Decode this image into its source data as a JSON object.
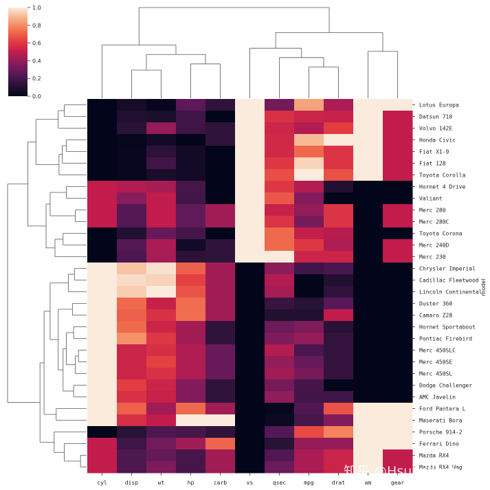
{
  "chart_data": {
    "type": "heatmap",
    "title": "",
    "colormap": "rocket",
    "colorbar": {
      "min": 0.0,
      "max": 1.0,
      "ticks": [
        "0.0",
        "0.2",
        "0.4",
        "0.6",
        "0.8",
        "1.0"
      ]
    },
    "xlabel": "",
    "ylabel": "model",
    "columns": [
      "cyl",
      "disp",
      "wt",
      "hp",
      "carb",
      "vs",
      "qsec",
      "mpg",
      "drat",
      "am",
      "gear"
    ],
    "rows": [
      "Lotus Europa",
      "Datsun 710",
      "Volvo 142E",
      "Honda Civic",
      "Fiat X1-9",
      "Fiat 128",
      "Toyota Corolla",
      "Hornet 4 Drive",
      "Valiant",
      "Merc 280",
      "Merc 280C",
      "Toyota Corona",
      "Merc 240D",
      "Merc 230",
      "Chrysler Imperial",
      "Cadillac Fleetwood",
      "Lincoln Continental",
      "Duster 360",
      "Camaro Z28",
      "Hornet Sportabout",
      "Pontiac Firebird",
      "Merc 450SLC",
      "Merc 450SE",
      "Merc 450SL",
      "Dodge Challenger",
      "AMC Javelin",
      "Ford Pantera L",
      "Maserati Bora",
      "Porsche 914-2",
      "Ferrari Dino",
      "Mazda RX4",
      "Mazda RX4 Wag"
    ],
    "values": [
      [
        0.0,
        0.06,
        0.02,
        0.26,
        0.14,
        1.0,
        0.32,
        0.85,
        0.45,
        1.0,
        1.0
      ],
      [
        0.0,
        0.1,
        0.08,
        0.18,
        0.0,
        1.0,
        0.58,
        0.53,
        0.52,
        1.0,
        0.5
      ],
      [
        0.0,
        0.12,
        0.4,
        0.18,
        0.14,
        1.0,
        0.54,
        0.47,
        0.62,
        1.0,
        0.5
      ],
      [
        0.0,
        0.01,
        0.05,
        0.0,
        0.14,
        1.0,
        0.55,
        0.9,
        1.0,
        1.0,
        0.5
      ],
      [
        0.0,
        0.02,
        0.13,
        0.05,
        0.0,
        1.0,
        0.55,
        0.72,
        0.59,
        1.0,
        0.5
      ],
      [
        0.0,
        0.02,
        0.19,
        0.05,
        0.0,
        1.0,
        0.6,
        0.95,
        0.59,
        1.0,
        0.5
      ],
      [
        0.0,
        0.01,
        0.07,
        0.05,
        0.0,
        1.0,
        0.66,
        1.0,
        0.67,
        1.0,
        0.5
      ],
      [
        0.5,
        0.47,
        0.44,
        0.2,
        0.0,
        1.0,
        0.6,
        0.47,
        0.1,
        0.0,
        0.0
      ],
      [
        0.5,
        0.38,
        0.5,
        0.19,
        0.0,
        1.0,
        0.68,
        0.36,
        0.0,
        0.0,
        0.0
      ],
      [
        0.5,
        0.24,
        0.5,
        0.27,
        0.43,
        1.0,
        0.52,
        0.4,
        0.59,
        0.0,
        0.5
      ],
      [
        0.5,
        0.24,
        0.5,
        0.27,
        0.43,
        1.0,
        0.59,
        0.33,
        0.59,
        0.0,
        0.5
      ],
      [
        0.0,
        0.1,
        0.29,
        0.2,
        0.0,
        1.0,
        0.72,
        0.51,
        0.48,
        0.0,
        0.0
      ],
      [
        0.0,
        0.24,
        0.45,
        0.05,
        0.14,
        1.0,
        0.72,
        0.6,
        0.46,
        0.0,
        0.5
      ],
      [
        0.0,
        0.22,
        0.44,
        0.13,
        0.14,
        1.0,
        1.0,
        0.53,
        0.53,
        0.0,
        0.5
      ],
      [
        1.0,
        0.92,
        0.98,
        0.7,
        0.43,
        0.0,
        0.38,
        0.18,
        0.21,
        0.0,
        0.0
      ],
      [
        1.0,
        0.97,
        0.95,
        0.63,
        0.43,
        0.0,
        0.47,
        0.0,
        0.1,
        0.0,
        0.0
      ],
      [
        1.0,
        0.94,
        1.0,
        0.67,
        0.43,
        0.0,
        0.44,
        0.0,
        0.14,
        0.0,
        0.0
      ],
      [
        1.0,
        0.72,
        0.52,
        0.73,
        0.43,
        0.0,
        0.16,
        0.12,
        0.25,
        0.0,
        0.0
      ],
      [
        1.0,
        0.7,
        0.58,
        0.73,
        0.43,
        0.0,
        0.1,
        0.1,
        0.5,
        0.0,
        0.0
      ],
      [
        1.0,
        0.72,
        0.53,
        0.43,
        0.14,
        0.0,
        0.3,
        0.35,
        0.12,
        0.0,
        0.0
      ],
      [
        1.0,
        0.81,
        0.6,
        0.43,
        0.14,
        0.0,
        0.35,
        0.4,
        0.15,
        0.0,
        0.0
      ],
      [
        1.0,
        0.53,
        0.57,
        0.46,
        0.29,
        0.0,
        0.47,
        0.21,
        0.15,
        0.0,
        0.0
      ],
      [
        1.0,
        0.53,
        0.63,
        0.46,
        0.29,
        0.0,
        0.4,
        0.29,
        0.15,
        0.0,
        0.0
      ],
      [
        1.0,
        0.53,
        0.58,
        0.46,
        0.29,
        0.0,
        0.43,
        0.33,
        0.15,
        0.0,
        0.0
      ],
      [
        1.0,
        0.62,
        0.53,
        0.36,
        0.14,
        0.0,
        0.33,
        0.2,
        0.0,
        0.0,
        0.0
      ],
      [
        1.0,
        0.58,
        0.52,
        0.36,
        0.14,
        0.0,
        0.39,
        0.19,
        0.18,
        0.0,
        0.0
      ],
      [
        1.0,
        0.7,
        0.43,
        0.72,
        0.43,
        0.0,
        0.02,
        0.23,
        0.67,
        1.0,
        1.0
      ],
      [
        1.0,
        0.57,
        0.5,
        1.0,
        1.0,
        0.0,
        0.03,
        0.2,
        0.36,
        1.0,
        1.0
      ],
      [
        0.0,
        0.12,
        0.22,
        0.2,
        0.14,
        0.0,
        0.24,
        0.65,
        0.78,
        1.0,
        1.0
      ],
      [
        0.5,
        0.18,
        0.32,
        0.43,
        0.71,
        0.0,
        0.12,
        0.4,
        0.4,
        1.0,
        1.0
      ],
      [
        0.5,
        0.22,
        0.28,
        0.2,
        0.43,
        0.0,
        0.23,
        0.45,
        0.53,
        1.0,
        0.5
      ],
      [
        0.5,
        0.22,
        0.35,
        0.2,
        0.43,
        0.0,
        0.3,
        0.45,
        0.53,
        1.0,
        0.5
      ]
    ],
    "row_dendrogram": [
      {
        "l": 0,
        "r": 1,
        "h": 0.55
      },
      {
        "l": "c0",
        "r": 2,
        "h": 0.7
      },
      {
        "l": 3,
        "r": 4,
        "h": 0.5
      },
      {
        "l": "c2",
        "r": 5,
        "h": 0.6
      },
      {
        "l": "c3",
        "r": 6,
        "h": 0.68
      },
      {
        "l": "c1",
        "r": "c4",
        "h": 1.25
      },
      {
        "l": 7,
        "r": 8,
        "h": 0.5
      },
      {
        "l": 9,
        "r": 10,
        "h": 0.28
      },
      {
        "l": "c6",
        "r": "c7",
        "h": 0.9
      },
      {
        "l": 11,
        "r": 12,
        "h": 0.58
      },
      {
        "l": "c9",
        "r": 13,
        "h": 0.78
      },
      {
        "l": "c8",
        "r": "c10",
        "h": 1.0
      },
      {
        "l": "c5",
        "r": "c11",
        "h": 1.45
      },
      {
        "l": 14,
        "r": 15,
        "h": 0.3
      },
      {
        "l": "c13",
        "r": 16,
        "h": 0.45
      },
      {
        "l": 17,
        "r": 18,
        "h": 0.35
      },
      {
        "l": 19,
        "r": 20,
        "h": 0.32
      },
      {
        "l": 21,
        "r": 22,
        "h": 0.2
      },
      {
        "l": "c17",
        "r": 23,
        "h": 0.28
      },
      {
        "l": "c16",
        "r": "c18",
        "h": 0.5
      },
      {
        "l": 24,
        "r": 25,
        "h": 0.32
      },
      {
        "l": "c19",
        "r": "c20",
        "h": 0.58
      },
      {
        "l": "c15",
        "r": "c21",
        "h": 0.7
      },
      {
        "l": "c14",
        "r": "c22",
        "h": 0.9
      },
      {
        "l": 26,
        "r": 27,
        "h": 0.75
      },
      {
        "l": "c23",
        "r": "c24",
        "h": 1.05
      },
      {
        "l": 30,
        "r": 31,
        "h": 0.15
      },
      {
        "l": 29,
        "r": "c26",
        "h": 0.55
      },
      {
        "l": 28,
        "r": "c27",
        "h": 0.8
      },
      {
        "l": "c25",
        "r": "c28",
        "h": 1.15
      },
      {
        "l": "c12",
        "r": "c29",
        "h": 1.95
      }
    ],
    "col_dendrogram": [
      {
        "l": 1,
        "r": 2,
        "h": 0.45
      },
      {
        "l": 3,
        "r": 4,
        "h": 0.55
      },
      {
        "l": "c0",
        "r": "c1",
        "h": 0.7
      },
      {
        "l": 0,
        "r": "c2",
        "h": 0.85
      },
      {
        "l": 7,
        "r": 8,
        "h": 0.5
      },
      {
        "l": 6,
        "r": "c4",
        "h": 0.65
      },
      {
        "l": 5,
        "r": "c5",
        "h": 0.8
      },
      {
        "l": 9,
        "r": 10,
        "h": 0.75
      },
      {
        "l": "c6",
        "r": "c7",
        "h": 1.05
      },
      {
        "l": "c3",
        "r": "c8",
        "h": 1.45
      }
    ]
  },
  "watermark": "知乎 @Hsuhellrich"
}
